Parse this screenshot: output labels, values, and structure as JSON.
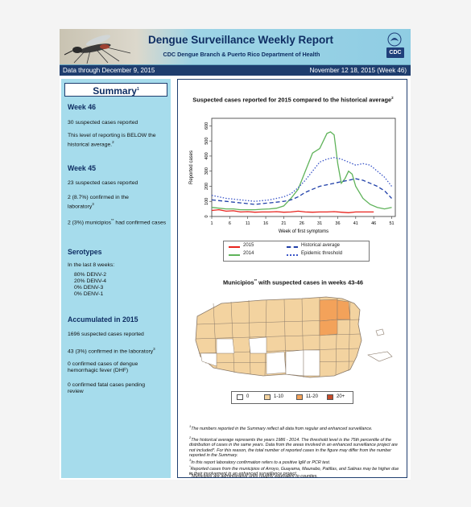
{
  "header": {
    "title": "Dengue Surveillance Weekly Report",
    "subtitle": "CDC Dengue Branch & Puerto Rico Department of Health",
    "logo_text": "CDC",
    "data_through": "Data through December 9, 2015",
    "week_range": "November 12 18, 2015 (Week 46)"
  },
  "summary": {
    "title": "Summary",
    "title_sup": "1",
    "week46": {
      "heading": "Week 46",
      "cases": "30 suspected cases reported",
      "level_text": "This level of reporting is BELOW the historical average.",
      "level_sup": "2"
    },
    "week45": {
      "heading": "Week 45",
      "cases": "23 suspected cases reported",
      "confirmed_text": "2 (8.7%) confirmed in the laboratory",
      "confirmed_sup": "3",
      "municipios_text_a": "2 (3%) municipios",
      "municipios_sup": "**",
      "municipios_text_b": " had confirmed cases"
    },
    "serotypes": {
      "heading": "Serotypes",
      "intro": "In the last 8 weeks:",
      "items": [
        "80% DENV-2",
        "20% DENV-4",
        "0% DENV-3",
        "0% DENV-1"
      ]
    },
    "accumulated": {
      "heading": "Accumulated in 2015",
      "suspected": "1696 suspected cases reported",
      "confirmed_text": "43 (3%) confirmed in the laboratory",
      "confirmed_sup": "3",
      "dhf": "0 confirmed cases of dengue hemorrhagic fever (DHF)",
      "fatal": "0 confirmed fatal cases pending review"
    }
  },
  "chart_title": "Suspected cases reported for 2015 compared to the historical average",
  "chart_title_sup": "2",
  "chart_data": {
    "type": "line",
    "xlabel": "Week of first symptoms",
    "ylabel": "Reported cases",
    "x_ticks": [
      1,
      6,
      11,
      16,
      21,
      26,
      31,
      36,
      41,
      46,
      51
    ],
    "y_ticks": [
      0,
      100,
      200,
      300,
      400,
      500,
      600
    ],
    "xlim": [
      1,
      52
    ],
    "ylim": [
      0,
      650
    ],
    "series": [
      {
        "name": "2015",
        "color": "#e8231d",
        "style": "solid",
        "x": [
          1,
          3,
          5,
          7,
          9,
          11,
          13,
          15,
          17,
          19,
          21,
          23,
          25,
          27,
          29,
          31,
          33,
          35,
          37,
          39,
          41,
          43,
          45,
          46
        ],
        "y": [
          40,
          45,
          35,
          38,
          30,
          32,
          28,
          30,
          30,
          32,
          28,
          30,
          35,
          30,
          28,
          30,
          30,
          32,
          28,
          25,
          30,
          30,
          30,
          30
        ]
      },
      {
        "name": "2014",
        "color": "#5fb35a",
        "style": "solid",
        "x": [
          1,
          3,
          5,
          7,
          9,
          11,
          13,
          15,
          17,
          19,
          21,
          23,
          25,
          27,
          29,
          31,
          33,
          34,
          35,
          36,
          37,
          38,
          39,
          40,
          41,
          43,
          45,
          47,
          49,
          51
        ],
        "y": [
          60,
          55,
          50,
          50,
          45,
          45,
          45,
          48,
          50,
          55,
          70,
          120,
          180,
          300,
          420,
          450,
          550,
          560,
          540,
          350,
          220,
          250,
          300,
          280,
          200,
          120,
          80,
          60,
          50,
          60
        ]
      },
      {
        "name": "Historical average",
        "color": "#1f3fa8",
        "style": "dashed",
        "x": [
          1,
          3,
          5,
          7,
          9,
          11,
          13,
          15,
          17,
          19,
          21,
          23,
          25,
          27,
          29,
          31,
          33,
          35,
          37,
          39,
          41,
          43,
          45,
          47,
          49,
          51
        ],
        "y": [
          110,
          105,
          100,
          95,
          90,
          85,
          80,
          85,
          90,
          95,
          100,
          110,
          130,
          160,
          180,
          200,
          210,
          220,
          230,
          240,
          250,
          240,
          220,
          200,
          170,
          120
        ]
      },
      {
        "name": "Epidemic threshold",
        "color": "#3a55c8",
        "style": "dotted",
        "x": [
          1,
          3,
          5,
          7,
          9,
          11,
          13,
          15,
          17,
          19,
          21,
          23,
          25,
          27,
          29,
          31,
          33,
          35,
          37,
          39,
          41,
          43,
          45,
          47,
          49,
          51
        ],
        "y": [
          140,
          130,
          120,
          115,
          110,
          105,
          100,
          105,
          110,
          120,
          130,
          150,
          190,
          240,
          300,
          360,
          380,
          390,
          380,
          360,
          340,
          350,
          340,
          300,
          260,
          200
        ]
      }
    ]
  },
  "map_title": "Municipios",
  "map_title_sup": "**",
  "map_title_rest": " with suspected cases in weeks 43-46",
  "map_legend": [
    {
      "label": "0",
      "color": "#ffffff"
    },
    {
      "label": "1-10",
      "color": "#f3d3a0"
    },
    {
      "label": "11-20",
      "color": "#f3a25a"
    },
    {
      "label": "20+",
      "color": "#c64b2a"
    }
  ],
  "footnotes": [
    {
      "sup": "1",
      "text": "The numbers reported in the Summary reflect all data from regular and enhanced surveillance."
    },
    {
      "sup": "2",
      "text": "The historical average represents the years 1986 - 2014. The threshold level is the 75th percentile of the distribution of cases in the same years. Data from the areas involved in an enhanced surveillance project are not included*. For this reason, the total number of reported cases in the figure may differ from the number reported in the Summary."
    },
    {
      "sup": "3",
      "text": "In this report laboratory confirmation refers to a positive IgM or PCR test."
    },
    {
      "sup": "*",
      "text": "Reported cases from the municipios of Arroyo, Guayama, Maunabo, Patillas, and Salinas may be higher due to their involvement in an enhanced surveillance project."
    },
    {
      "sup": "**",
      "text": "Municipios are administrative units roughly equivalent to counties."
    }
  ]
}
